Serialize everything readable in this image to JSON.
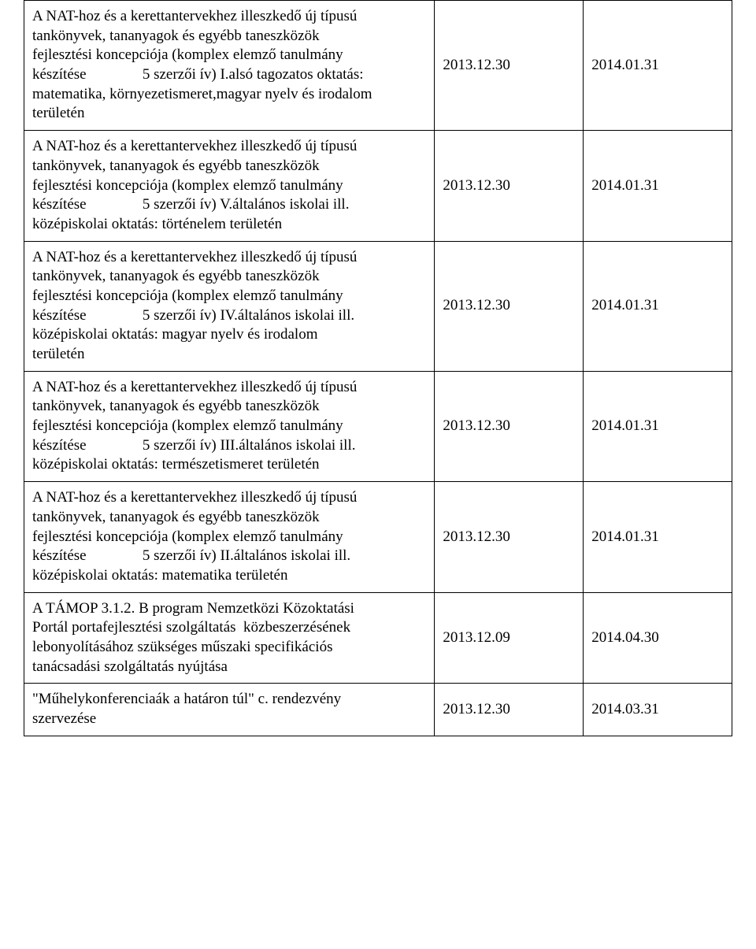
{
  "table": {
    "columns": [
      "description",
      "date1",
      "date2"
    ],
    "col_widths_pct": [
      58,
      21,
      21
    ],
    "border_color": "#000000",
    "background_color": "#ffffff",
    "text_color": "#000000",
    "font_family": "Times New Roman",
    "font_size_pt": 14,
    "rows": [
      {
        "desc_lines": [
          "A NAT-hoz és a kerettantervekhez illeszkedő új típusú",
          "tankönyvek, tananyagok és egyébb taneszközök",
          "fejlesztési koncepciója (komplex elemző tanulmány",
          "készítése               5 szerzői ív) I.alsó tagozatos oktatás:",
          "matematika, környezetismeret,magyar nyelv és irodalom",
          "területén"
        ],
        "date1": "2013.12.30",
        "date2": "2014.01.31"
      },
      {
        "desc_lines": [
          "A NAT-hoz és a kerettantervekhez illeszkedő új típusú",
          "tankönyvek, tananyagok és egyébb taneszközök",
          "fejlesztési koncepciója (komplex elemző tanulmány",
          "készítése               5 szerzői ív) V.általános iskolai ill.",
          "középiskolai oktatás: történelem területén"
        ],
        "date1": "2013.12.30",
        "date2": "2014.01.31"
      },
      {
        "desc_lines": [
          "A NAT-hoz és a kerettantervekhez illeszkedő új típusú",
          "tankönyvek, tananyagok és egyébb taneszközök",
          "fejlesztési koncepciója (komplex elemző tanulmány",
          "készítése               5 szerzői ív) IV.általános iskolai ill.",
          "középiskolai oktatás: magyar nyelv és irodalom",
          "területén"
        ],
        "date1": "2013.12.30",
        "date2": "2014.01.31"
      },
      {
        "desc_lines": [
          "A NAT-hoz és a kerettantervekhez illeszkedő új típusú",
          "tankönyvek, tananyagok és egyébb taneszközök",
          "fejlesztési koncepciója (komplex elemző tanulmány",
          "készítése               5 szerzői ív) III.általános iskolai ill.",
          "középiskolai oktatás: természetismeret területén"
        ],
        "date1": "2013.12.30",
        "date2": "2014.01.31"
      },
      {
        "desc_lines": [
          "A NAT-hoz és a kerettantervekhez illeszkedő új típusú",
          "tankönyvek, tananyagok és egyébb taneszközök",
          "fejlesztési koncepciója (komplex elemző tanulmány",
          "készítése               5 szerzői ív) II.általános iskolai ill.",
          "középiskolai oktatás: matematika területén"
        ],
        "date1": "2013.12.30",
        "date2": "2014.01.31"
      },
      {
        "desc_lines": [
          "A TÁMOP 3.1.2. B program Nemzetközi Közoktatási",
          "Portál portafejlesztési szolgáltatás  közbeszerzésének",
          "lebonyolításához szükséges műszaki specifikációs",
          "tanácsadási szolgáltatás nyújtása"
        ],
        "date1": "2013.12.09",
        "date2": "2014.04.30"
      },
      {
        "desc_lines": [
          "\"Műhelykonferenciaák a határon túl\" c. rendezvény",
          "szervezése"
        ],
        "date1": "2013.12.30",
        "date2": "2014.03.31"
      }
    ]
  }
}
